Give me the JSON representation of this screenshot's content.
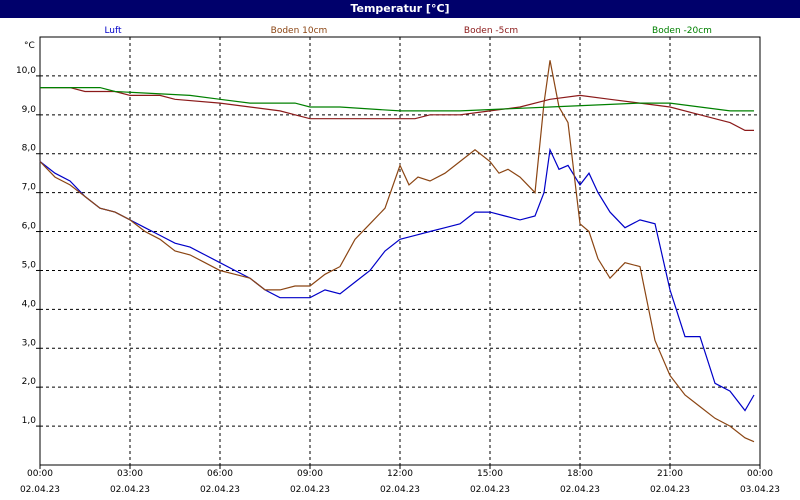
{
  "chart_data": {
    "type": "line",
    "title": "Temperatur [°C]",
    "ylabel": "°C",
    "xlabel": "",
    "ylim": [
      0,
      11
    ],
    "xlim": [
      0,
      24
    ],
    "grid": true,
    "legend_position": "top",
    "y_ticks": [
      "1,0",
      "2,0",
      "3,0",
      "4,0",
      "5,0",
      "6,0",
      "7,0",
      "8,0",
      "9,0",
      "10,0"
    ],
    "x_ticks": [
      {
        "time": "00:00",
        "date": "02.04.23"
      },
      {
        "time": "03:00",
        "date": "02.04.23"
      },
      {
        "time": "06:00",
        "date": "02.04.23"
      },
      {
        "time": "09:00",
        "date": "02.04.23"
      },
      {
        "time": "12:00",
        "date": "02.04.23"
      },
      {
        "time": "15:00",
        "date": "02.04.23"
      },
      {
        "time": "18:00",
        "date": "02.04.23"
      },
      {
        "time": "21:00",
        "date": "02.04.23"
      },
      {
        "time": "00:00",
        "date": "03.04.23"
      }
    ],
    "series": [
      {
        "name": "Luft",
        "color": "#0000c8",
        "points": [
          [
            0.0,
            7.8
          ],
          [
            0.5,
            7.5
          ],
          [
            1.0,
            7.3
          ],
          [
            1.5,
            6.9
          ],
          [
            2.0,
            6.6
          ],
          [
            2.5,
            6.5
          ],
          [
            3.0,
            6.3
          ],
          [
            3.5,
            6.1
          ],
          [
            4.0,
            5.9
          ],
          [
            4.5,
            5.7
          ],
          [
            5.0,
            5.6
          ],
          [
            5.5,
            5.4
          ],
          [
            6.0,
            5.2
          ],
          [
            6.5,
            5.0
          ],
          [
            7.0,
            4.8
          ],
          [
            7.5,
            4.5
          ],
          [
            8.0,
            4.3
          ],
          [
            8.5,
            4.3
          ],
          [
            9.0,
            4.3
          ],
          [
            9.5,
            4.5
          ],
          [
            10.0,
            4.4
          ],
          [
            10.5,
            4.7
          ],
          [
            11.0,
            5.0
          ],
          [
            11.5,
            5.5
          ],
          [
            12.0,
            5.8
          ],
          [
            12.5,
            5.9
          ],
          [
            13.0,
            6.0
          ],
          [
            13.5,
            6.1
          ],
          [
            14.0,
            6.2
          ],
          [
            14.5,
            6.5
          ],
          [
            15.0,
            6.5
          ],
          [
            15.5,
            6.4
          ],
          [
            16.0,
            6.3
          ],
          [
            16.5,
            6.4
          ],
          [
            16.8,
            7.0
          ],
          [
            17.0,
            8.1
          ],
          [
            17.3,
            7.6
          ],
          [
            17.6,
            7.7
          ],
          [
            18.0,
            7.2
          ],
          [
            18.3,
            7.5
          ],
          [
            18.6,
            7.0
          ],
          [
            19.0,
            6.5
          ],
          [
            19.5,
            6.1
          ],
          [
            20.0,
            6.3
          ],
          [
            20.5,
            6.2
          ],
          [
            21.0,
            4.5
          ],
          [
            21.5,
            3.3
          ],
          [
            22.0,
            3.3
          ],
          [
            22.5,
            2.1
          ],
          [
            23.0,
            1.9
          ],
          [
            23.5,
            1.4
          ],
          [
            23.8,
            1.8
          ]
        ]
      },
      {
        "name": "Boden 10cm",
        "color": "#8b4513",
        "points": [
          [
            0.0,
            7.8
          ],
          [
            0.5,
            7.4
          ],
          [
            1.0,
            7.2
          ],
          [
            1.5,
            6.9
          ],
          [
            2.0,
            6.6
          ],
          [
            2.5,
            6.5
          ],
          [
            3.0,
            6.3
          ],
          [
            3.5,
            6.0
          ],
          [
            4.0,
            5.8
          ],
          [
            4.5,
            5.5
          ],
          [
            5.0,
            5.4
          ],
          [
            5.5,
            5.2
          ],
          [
            6.0,
            5.0
          ],
          [
            6.5,
            4.9
          ],
          [
            7.0,
            4.8
          ],
          [
            7.5,
            4.5
          ],
          [
            8.0,
            4.5
          ],
          [
            8.5,
            4.6
          ],
          [
            9.0,
            4.6
          ],
          [
            9.5,
            4.9
          ],
          [
            10.0,
            5.1
          ],
          [
            10.5,
            5.8
          ],
          [
            11.0,
            6.2
          ],
          [
            11.5,
            6.6
          ],
          [
            12.0,
            7.7
          ],
          [
            12.3,
            7.2
          ],
          [
            12.6,
            7.4
          ],
          [
            13.0,
            7.3
          ],
          [
            13.5,
            7.5
          ],
          [
            14.0,
            7.8
          ],
          [
            14.5,
            8.1
          ],
          [
            15.0,
            7.8
          ],
          [
            15.3,
            7.5
          ],
          [
            15.6,
            7.6
          ],
          [
            16.0,
            7.4
          ],
          [
            16.5,
            7.0
          ],
          [
            16.8,
            9.3
          ],
          [
            17.0,
            10.4
          ],
          [
            17.3,
            9.2
          ],
          [
            17.6,
            8.8
          ],
          [
            18.0,
            6.2
          ],
          [
            18.3,
            6.0
          ],
          [
            18.6,
            5.3
          ],
          [
            19.0,
            4.8
          ],
          [
            19.5,
            5.2
          ],
          [
            20.0,
            5.1
          ],
          [
            20.5,
            3.2
          ],
          [
            21.0,
            2.3
          ],
          [
            21.5,
            1.8
          ],
          [
            22.0,
            1.5
          ],
          [
            22.5,
            1.2
          ],
          [
            23.0,
            1.0
          ],
          [
            23.5,
            0.7
          ],
          [
            23.8,
            0.6
          ]
        ]
      },
      {
        "name": "Boden -5cm",
        "color": "#8b1a1a",
        "points": [
          [
            0.0,
            9.7
          ],
          [
            1.0,
            9.7
          ],
          [
            1.5,
            9.6
          ],
          [
            2.5,
            9.6
          ],
          [
            3.0,
            9.5
          ],
          [
            4.0,
            9.5
          ],
          [
            4.5,
            9.4
          ],
          [
            6.0,
            9.3
          ],
          [
            7.0,
            9.2
          ],
          [
            8.0,
            9.1
          ],
          [
            8.5,
            9.0
          ],
          [
            9.0,
            8.9
          ],
          [
            11.0,
            8.9
          ],
          [
            12.5,
            8.9
          ],
          [
            13.0,
            9.0
          ],
          [
            14.0,
            9.0
          ],
          [
            15.0,
            9.1
          ],
          [
            16.0,
            9.2
          ],
          [
            17.0,
            9.4
          ],
          [
            18.0,
            9.5
          ],
          [
            19.0,
            9.4
          ],
          [
            20.0,
            9.3
          ],
          [
            21.0,
            9.2
          ],
          [
            22.0,
            9.0
          ],
          [
            22.5,
            8.9
          ],
          [
            23.0,
            8.8
          ],
          [
            23.5,
            8.6
          ],
          [
            23.8,
            8.6
          ]
        ]
      },
      {
        "name": "Boden -20cm",
        "color": "#008000",
        "points": [
          [
            0.0,
            9.7
          ],
          [
            2.0,
            9.7
          ],
          [
            2.5,
            9.6
          ],
          [
            5.0,
            9.5
          ],
          [
            6.0,
            9.4
          ],
          [
            7.0,
            9.3
          ],
          [
            8.5,
            9.3
          ],
          [
            9.0,
            9.2
          ],
          [
            10.0,
            9.2
          ],
          [
            12.0,
            9.1
          ],
          [
            13.0,
            9.1
          ],
          [
            14.0,
            9.1
          ],
          [
            17.0,
            9.2
          ],
          [
            20.0,
            9.3
          ],
          [
            21.0,
            9.3
          ],
          [
            22.0,
            9.2
          ],
          [
            23.0,
            9.1
          ],
          [
            23.8,
            9.1
          ]
        ]
      }
    ]
  }
}
